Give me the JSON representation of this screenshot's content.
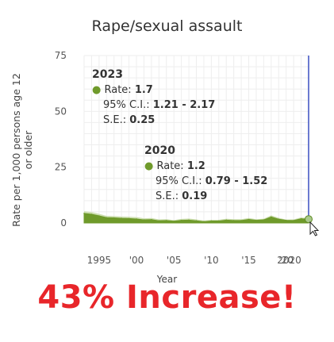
{
  "chart_data": {
    "type": "area",
    "title": "Rape/sexual assault",
    "ylabel": "Rate per 1,000 persons age 12 or older",
    "xlabel": "Year",
    "ylim": [
      0,
      75
    ],
    "xlim": [
      1993,
      2023
    ],
    "y_ticks": [
      "0",
      "25",
      "50",
      "75"
    ],
    "x_ticks": [
      {
        "value": 1995,
        "label": "1995"
      },
      {
        "value": 2000,
        "label": "'00"
      },
      {
        "value": 2005,
        "label": "'05"
      },
      {
        "value": 2010,
        "label": "'10"
      },
      {
        "value": 2015,
        "label": "'15"
      },
      {
        "value": 2020,
        "label": "'20"
      },
      {
        "value": 2020.4,
        "label": "2020"
      }
    ],
    "series": [
      {
        "x": [
          1993,
          1994,
          1995,
          1996,
          1997,
          1998,
          1999,
          2000,
          2001,
          2002,
          2003,
          2004,
          2005,
          2006,
          2007,
          2008,
          2009,
          2010,
          2011,
          2012,
          2013,
          2014,
          2015,
          2016,
          2017,
          2018,
          2019,
          2020,
          2021,
          2022,
          2023
        ],
        "y": [
          4.3,
          3.9,
          3.2,
          2.4,
          2.3,
          2.1,
          2.0,
          1.8,
          1.4,
          1.5,
          1.0,
          1.1,
          0.8,
          1.2,
          1.3,
          1.0,
          0.6,
          0.9,
          0.9,
          1.3,
          1.1,
          1.1,
          1.6,
          1.2,
          1.4,
          2.7,
          1.7,
          1.2,
          1.1,
          1.9,
          1.7
        ],
        "ci_low": [
          3.4,
          3.0,
          2.4,
          1.7,
          1.6,
          1.4,
          1.3,
          1.2,
          0.8,
          0.9,
          0.6,
          0.6,
          0.4,
          0.7,
          0.7,
          0.5,
          0.3,
          0.5,
          0.5,
          0.8,
          0.7,
          0.7,
          1.1,
          0.8,
          1.0,
          2.1,
          1.3,
          0.79,
          0.7,
          1.4,
          1.21
        ],
        "ci_high": [
          5.3,
          4.9,
          4.1,
          3.2,
          3.1,
          2.9,
          2.8,
          2.6,
          2.1,
          2.2,
          1.6,
          1.7,
          1.3,
          1.8,
          2.0,
          1.6,
          1.1,
          1.4,
          1.4,
          1.9,
          1.7,
          1.7,
          2.2,
          1.7,
          1.9,
          3.4,
          2.3,
          1.52,
          1.6,
          2.5,
          2.17
        ],
        "color": "#6f9a2b"
      }
    ],
    "highlight_color": "#3a4ec0",
    "tooltips": [
      {
        "year": "2023",
        "rate_label": "Rate:",
        "rate": "1.7",
        "ci_label": "95% C.I.:",
        "ci": "1.21 - 2.17",
        "se_label": "S.E.:",
        "se": "0.25"
      },
      {
        "year": "2020",
        "rate_label": "Rate:",
        "rate": "1.2",
        "ci_label": "95% C.I.:",
        "ci": "0.79 - 1.52",
        "se_label": "S.E.:",
        "se": "0.19"
      }
    ]
  },
  "headline": "43% Increase!",
  "colors": {
    "headline": "#e8262a",
    "area_fill": "#6f9a2b",
    "band_fill": "#cfe0b4",
    "grid": "#eeeeee",
    "highlight_line": "#3a4ec0",
    "text": "#333333"
  }
}
